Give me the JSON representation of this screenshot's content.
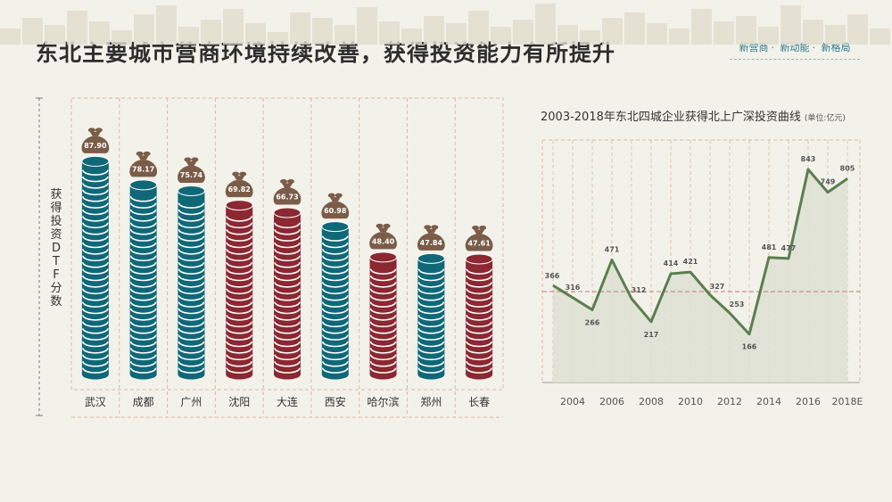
{
  "header": {
    "title": "东北主要城市营商环境持续改善，获得投资能力有所提升",
    "tags": [
      "新营商",
      "新动能",
      "新格局"
    ]
  },
  "colors": {
    "teal": "#0f6878",
    "red": "#8b2832",
    "brown": "#7a5c48",
    "green": "#5b7f4f",
    "grid": "#d9b8a6",
    "dashed_red": "#c97a7a"
  },
  "chart_data": [
    {
      "type": "bar",
      "ylabel": "获得投资DTF分数",
      "categories": [
        "武汉",
        "成都",
        "广州",
        "沈阳",
        "大连",
        "西安",
        "哈尔滨",
        "郑州",
        "长春"
      ],
      "values": [
        87.9,
        78.17,
        75.74,
        69.82,
        66.73,
        60.98,
        48.4,
        47.84,
        47.61
      ],
      "value_labels": [
        "87.90",
        "78.17",
        "75.74",
        "69.82",
        "66.73",
        "60.98",
        "48.40",
        "47.84",
        "47.61"
      ],
      "bar_colors": [
        "teal",
        "teal",
        "teal",
        "red",
        "red",
        "teal",
        "red",
        "teal",
        "red"
      ],
      "ylim": [
        0,
        100
      ]
    },
    {
      "type": "area",
      "title": "2003-2018年东北四城企业获得北上广深投资曲线",
      "unit": "(单位:亿元)",
      "x": [
        "2003",
        "2004",
        "2005",
        "2006",
        "2007",
        "2008",
        "2009",
        "2010",
        "2011",
        "2012",
        "2013",
        "2014",
        "2015",
        "2016",
        "2017",
        "2018E"
      ],
      "values": [
        366,
        316,
        266,
        471,
        312,
        217,
        414,
        421,
        327,
        253,
        166,
        481,
        477,
        843,
        749,
        805
      ],
      "value_labels": [
        "366",
        "316",
        "266",
        "471",
        "312",
        "217",
        "414",
        "421",
        "327",
        "253",
        "166",
        "481",
        "477",
        "843",
        "749",
        "805"
      ],
      "tick_labels": [
        "2004",
        "2006",
        "2008",
        "2010",
        "2012",
        "2014",
        "2016",
        "2018E"
      ],
      "ylim": [
        0,
        1000
      ]
    }
  ]
}
